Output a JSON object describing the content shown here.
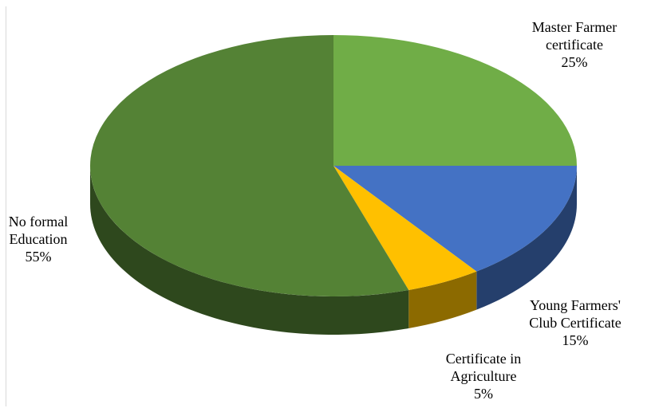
{
  "chart_data": {
    "type": "pie",
    "subtype": "3d",
    "title": "",
    "slices": [
      {
        "name": "Master Farmer certificate",
        "label_lines": [
          "Master Farmer",
          "certificate"
        ],
        "value": 25,
        "value_label": "25%",
        "color": "#70AD47"
      },
      {
        "name": "Young Farmers' Club Certificate",
        "label_lines": [
          "Young Farmers'",
          "Club Certificate"
        ],
        "value": 15,
        "value_label": "15%",
        "color": "#4472C4"
      },
      {
        "name": "Certificate in Agriculture",
        "label_lines": [
          "Certificate in",
          "Agriculture"
        ],
        "value": 5,
        "value_label": "5%",
        "color": "#FFC000"
      },
      {
        "name": "No formal Education",
        "label_lines": [
          "No formal",
          "Education"
        ],
        "value": 55,
        "value_label": "55%",
        "color": "#548235"
      }
    ],
    "legend": "none",
    "data_labels": "outside"
  }
}
